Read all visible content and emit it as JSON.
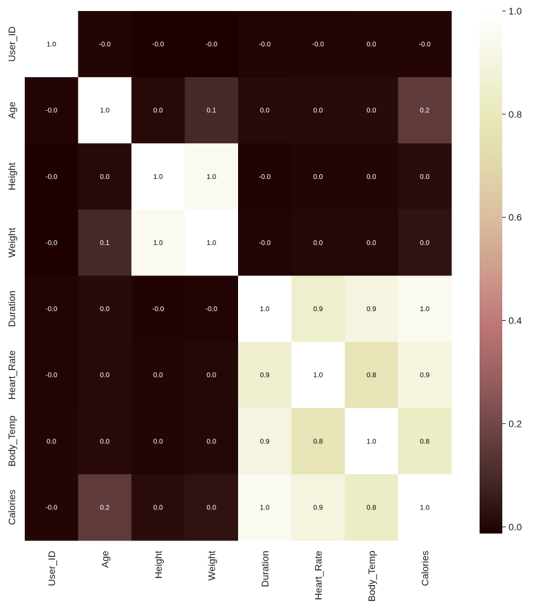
{
  "chart_data": {
    "type": "heatmap",
    "title": "",
    "xlabel": "",
    "ylabel": "",
    "rows": [
      "User_ID",
      "Age",
      "Height",
      "Weight",
      "Duration",
      "Heart_Rate",
      "Body_Temp",
      "Calories"
    ],
    "columns": [
      "User_ID",
      "Age",
      "Height",
      "Weight",
      "Duration",
      "Heart_Rate",
      "Body_Temp",
      "Calories"
    ],
    "values": [
      [
        1.0,
        -0.001,
        -0.012,
        -0.013,
        -0.002,
        -0.003,
        0.001,
        -0.001
      ],
      [
        -0.001,
        1.0,
        0.01,
        0.09,
        0.013,
        0.01,
        0.013,
        0.154
      ],
      [
        -0.012,
        0.01,
        1.0,
        0.958,
        -0.005,
        0.001,
        0.001,
        0.018
      ],
      [
        -0.013,
        0.09,
        0.958,
        1.0,
        -0.002,
        0.004,
        0.004,
        0.035
      ],
      [
        -0.002,
        0.013,
        -0.005,
        -0.002,
        1.0,
        0.853,
        0.903,
        0.955
      ],
      [
        -0.003,
        0.01,
        0.001,
        0.004,
        0.853,
        1.0,
        0.772,
        0.897
      ],
      [
        0.001,
        0.013,
        0.001,
        0.004,
        0.903,
        0.772,
        1.0,
        0.825
      ],
      [
        -0.001,
        0.154,
        0.018,
        0.035,
        0.955,
        0.897,
        0.825,
        1.0
      ]
    ],
    "annotations": [
      [
        "1.0",
        "-0.0",
        "-0.0",
        "-0.0",
        "-0.0",
        "-0.0",
        "0.0",
        "-0.0"
      ],
      [
        "-0.0",
        "1.0",
        "0.0",
        "0.1",
        "0.0",
        "0.0",
        "0.0",
        "0.2"
      ],
      [
        "-0.0",
        "0.0",
        "1.0",
        "1.0",
        "-0.0",
        "0.0",
        "0.0",
        "0.0"
      ],
      [
        "-0.0",
        "0.1",
        "1.0",
        "1.0",
        "-0.0",
        "0.0",
        "0.0",
        "0.0"
      ],
      [
        "-0.0",
        "0.0",
        "-0.0",
        "-0.0",
        "1.0",
        "0.9",
        "0.9",
        "1.0"
      ],
      [
        "-0.0",
        "0.0",
        "0.0",
        "0.0",
        "0.9",
        "1.0",
        "0.8",
        "0.9"
      ],
      [
        "0.0",
        "0.0",
        "0.0",
        "0.0",
        "0.9",
        "0.8",
        "1.0",
        "0.8"
      ],
      [
        "-0.0",
        "0.2",
        "0.0",
        "0.0",
        "1.0",
        "0.9",
        "0.8",
        "1.0"
      ]
    ],
    "colorbar": {
      "range": [
        -0.013,
        1.0
      ],
      "ticks": [
        0.0,
        0.2,
        0.4,
        0.6,
        0.8,
        1.0
      ],
      "tick_labels": [
        "0.0",
        "0.2",
        "0.4",
        "0.6",
        "0.8",
        "1.0"
      ],
      "colormap": "pink",
      "stops": [
        {
          "v": 0.0,
          "c": "#1e0000"
        },
        {
          "v": 0.1,
          "c": "#442727"
        },
        {
          "v": 0.2,
          "c": "#6d4545"
        },
        {
          "v": 0.3,
          "c": "#9a5f5f"
        },
        {
          "v": 0.4,
          "c": "#bd7777"
        },
        {
          "v": 0.5,
          "c": "#cd9b8c"
        },
        {
          "v": 0.6,
          "c": "#d8bd9e"
        },
        {
          "v": 0.7,
          "c": "#e1d7ac"
        },
        {
          "v": 0.8,
          "c": "#e9e9bb"
        },
        {
          "v": 0.9,
          "c": "#f4f4e0"
        },
        {
          "v": 1.0,
          "c": "#ffffff"
        }
      ]
    },
    "grid": false,
    "legend": "colorbar-right"
  }
}
